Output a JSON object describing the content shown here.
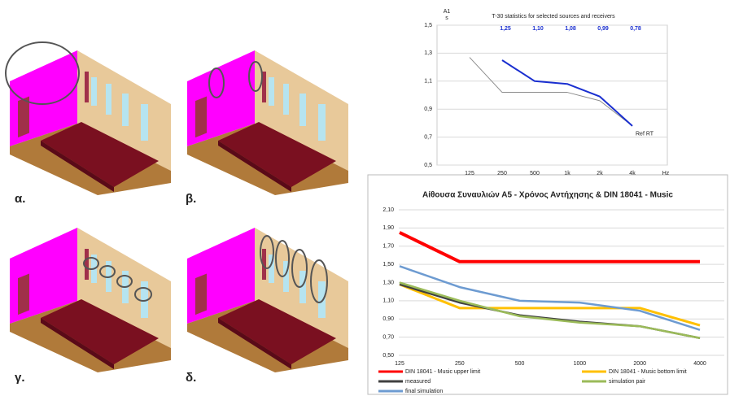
{
  "panels": [
    {
      "label": "α."
    },
    {
      "label": "β."
    },
    {
      "label": "γ."
    },
    {
      "label": "δ."
    }
  ],
  "chart_data": [
    {
      "type": "line",
      "title": "T-30 statistics for selected sources and receivers",
      "y_label": "A1",
      "y_unit": "s",
      "x_unit": "Hz",
      "categories": [
        "125",
        "250",
        "500",
        "1k",
        "2k",
        "4k"
      ],
      "ylim": [
        0.5,
        1.5
      ],
      "yticks": [
        {
          "value": 0.5,
          "label": "0,5"
        },
        {
          "value": 0.7,
          "label": "0,7"
        },
        {
          "value": 0.9,
          "label": "0,9"
        },
        {
          "value": 1.1,
          "label": "1,1"
        },
        {
          "value": 1.3,
          "label": "1,3"
        },
        {
          "value": 1.5,
          "label": "1,5"
        }
      ],
      "grid": true,
      "series": [
        {
          "name": "Ref RT",
          "color": "#8c8c8c",
          "values": [
            1.27,
            1.02,
            1.02,
            1.02,
            0.96,
            0.78
          ]
        },
        {
          "color": "#1a2fd0",
          "values": [
            null,
            1.25,
            1.1,
            1.08,
            0.99,
            0.78
          ],
          "value_labels": [
            null,
            "1,25",
            "1,10",
            "1,08",
            "0,99",
            "0,78"
          ]
        }
      ]
    },
    {
      "type": "line",
      "title": "Αίθουσα Συναυλιών Α5 - Χρόνος Αντήχησης  & DIN 18041 - Music",
      "categories": [
        "125",
        "250",
        "500",
        "1000",
        "2000",
        "4000"
      ],
      "ylim": [
        0.5,
        2.1
      ],
      "yticks": [
        {
          "value": 0.5,
          "label": "0,50"
        },
        {
          "value": 0.7,
          "label": "0,70"
        },
        {
          "value": 0.9,
          "label": "0,90"
        },
        {
          "value": 1.1,
          "label": "1,10"
        },
        {
          "value": 1.3,
          "label": "1,30"
        },
        {
          "value": 1.5,
          "label": "1,50"
        },
        {
          "value": 1.7,
          "label": "1,70"
        },
        {
          "value": 1.9,
          "label": "1,90"
        },
        {
          "value": 2.1,
          "label": "2,10"
        }
      ],
      "grid": true,
      "legend": "bottom",
      "series": [
        {
          "name": "DIN 18041 - Music upper limit",
          "color": "#ff0000",
          "values": [
            1.85,
            1.53,
            1.53,
            1.53,
            1.53,
            1.53
          ]
        },
        {
          "name": "DIN 18041 - Music bottom limit",
          "color": "#ffc000",
          "values": [
            1.28,
            1.02,
            1.02,
            1.02,
            1.02,
            0.83
          ]
        },
        {
          "name": "measured",
          "color": "#404040",
          "values": [
            1.28,
            1.08,
            0.94,
            0.87,
            0.82,
            0.69
          ]
        },
        {
          "name": "simulation pair",
          "color": "#9bbb59",
          "values": [
            1.3,
            1.1,
            0.93,
            0.86,
            0.82,
            0.69
          ]
        },
        {
          "name": "final simulation",
          "color": "#6d9bd1",
          "values": [
            1.48,
            1.25,
            1.1,
            1.08,
            0.99,
            0.78
          ]
        }
      ]
    }
  ]
}
